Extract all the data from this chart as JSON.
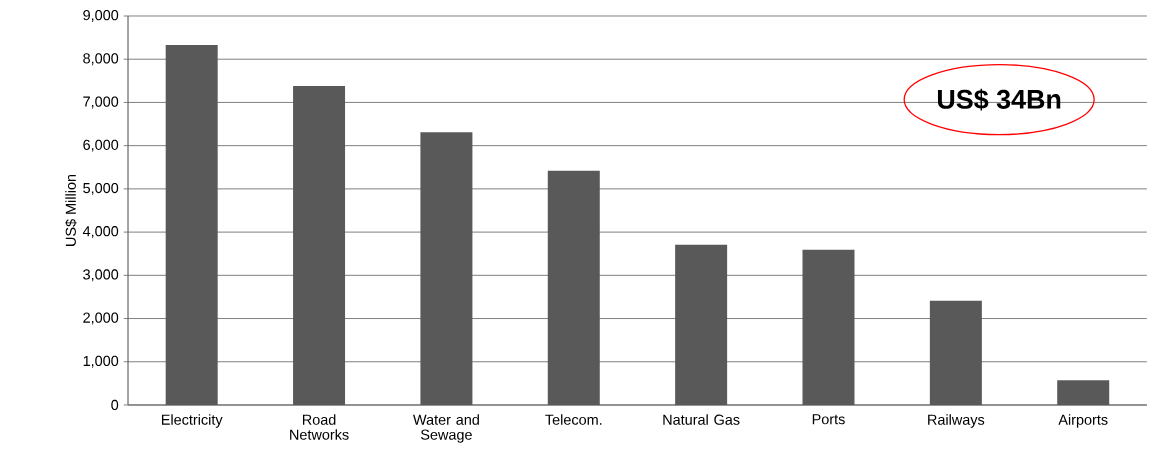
{
  "chart_data": {
    "type": "bar",
    "ylabel": "US$ Million",
    "categories": [
      "Electricity",
      "Road Networks",
      "Water and Sewage",
      "Telecom.",
      "Natural Gas",
      "Ports",
      "Railways",
      "Airports"
    ],
    "values": [
      8330,
      7380,
      6310,
      5420,
      3710,
      3590,
      2410,
      570
    ],
    "color": "#595959",
    "ylim": [
      0,
      9000
    ],
    "yticks": [
      {
        "value": 0,
        "label": "0"
      },
      {
        "value": 1000,
        "label": "1,000"
      },
      {
        "value": 2000,
        "label": "2,000"
      },
      {
        "value": 3000,
        "label": "3,000"
      },
      {
        "value": 4000,
        "label": "4,000"
      },
      {
        "value": 5000,
        "label": "5,000"
      },
      {
        "value": 6000,
        "label": "6,000"
      },
      {
        "value": 7000,
        "label": "7,000"
      },
      {
        "value": 8000,
        "label": "8,000"
      },
      {
        "value": 9000,
        "label": "9,000"
      }
    ],
    "grid": "y",
    "annotations": [
      "**US$ 34Bn**"
    ]
  }
}
